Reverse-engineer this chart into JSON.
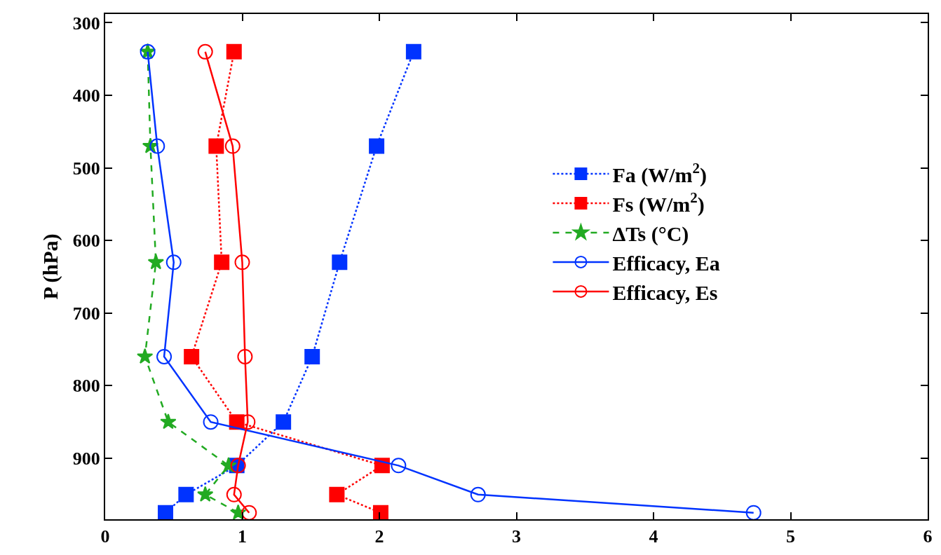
{
  "chart_data": {
    "type": "line",
    "ylabel": "P (hPa)",
    "xlim": [
      0,
      6
    ],
    "xticks": [
      0,
      1,
      2,
      3,
      4,
      5,
      6
    ],
    "ylim": [
      984,
      288
    ],
    "yticks": [
      300,
      400,
      500,
      600,
      700,
      800,
      900
    ],
    "legend": "right",
    "series": [
      {
        "name": "Fa (W/m$^{2}$)",
        "color": "#0033ff",
        "marker": "square",
        "line_style": "dotted",
        "x": [
          2.25,
          1.98,
          1.71,
          1.51,
          1.3,
          0.96,
          0.59,
          0.44
        ],
        "values": [
          340,
          470,
          630,
          760,
          850,
          910,
          950,
          975
        ]
      },
      {
        "name": "Fs (W/m$^{2}$)",
        "color": "#ff0000",
        "marker": "square",
        "line_style": "dotted",
        "x": [
          0.94,
          0.81,
          0.85,
          0.63,
          0.96,
          2.02,
          1.69,
          2.01
        ],
        "values": [
          340,
          470,
          630,
          760,
          850,
          910,
          950,
          975
        ]
      },
      {
        "name": "ΔTs (°C)",
        "color": "#22aa22",
        "marker": "star",
        "line_style": "dashed",
        "x": [
          0.31,
          0.33,
          0.37,
          0.29,
          0.46,
          0.9,
          0.73,
          0.97
        ],
        "values": [
          340,
          470,
          630,
          760,
          850,
          910,
          950,
          975
        ]
      },
      {
        "name": "Efficacy, Ea",
        "color": "#0033ff",
        "marker": "circle",
        "line_style": "solid",
        "x": [
          0.31,
          0.38,
          0.5,
          0.43,
          0.77,
          2.14,
          2.72,
          4.73
        ],
        "values": [
          340,
          470,
          630,
          760,
          850,
          910,
          950,
          975
        ]
      },
      {
        "name": "Efficacy, Es",
        "color": "#ff0000",
        "marker": "circle",
        "line_style": "solid",
        "x": [
          0.73,
          0.93,
          1.0,
          1.02,
          1.04,
          0.97,
          0.94,
          1.05
        ],
        "values": [
          340,
          470,
          630,
          760,
          850,
          910,
          950,
          975
        ]
      }
    ]
  }
}
